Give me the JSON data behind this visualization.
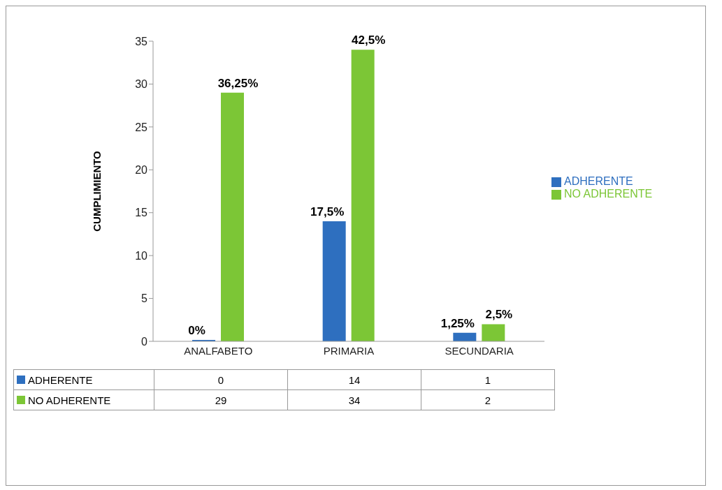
{
  "chart_data": {
    "type": "bar",
    "ylabel": "CUMPLIMIENTO",
    "categories": [
      "ANALFABETO",
      "PRIMARIA",
      "SECUNDARIA"
    ],
    "series": [
      {
        "name": "ADHERENTE",
        "color": "#2e6fbf",
        "values": [
          0,
          14,
          1
        ],
        "value_labels": [
          "0",
          "14",
          "1"
        ]
      },
      {
        "name": "NO ADHERENTE",
        "color": "#7cc636",
        "values": [
          29,
          34,
          2
        ],
        "value_labels": [
          "29",
          "34",
          "2"
        ]
      }
    ],
    "annotations": [
      {
        "text": "0%",
        "x": "ANALFABETO",
        "y": 0
      },
      {
        "text": "17,5%",
        "x": "PRIMARIA",
        "y": 14
      },
      {
        "text": "1,25%",
        "x": "SECUNDARIA",
        "y": 1
      },
      {
        "text": "36,25%",
        "x": "ANALFABETO",
        "y": 29
      },
      {
        "text": "42,5%",
        "x": "PRIMARIA",
        "y": 34
      },
      {
        "text": "2,5%",
        "x": "SECUNDARIA",
        "y": 2
      }
    ],
    "ylim": [
      0,
      35
    ],
    "yticks": [
      0,
      5,
      10,
      15,
      20,
      25,
      30,
      35
    ],
    "legend": "right"
  }
}
